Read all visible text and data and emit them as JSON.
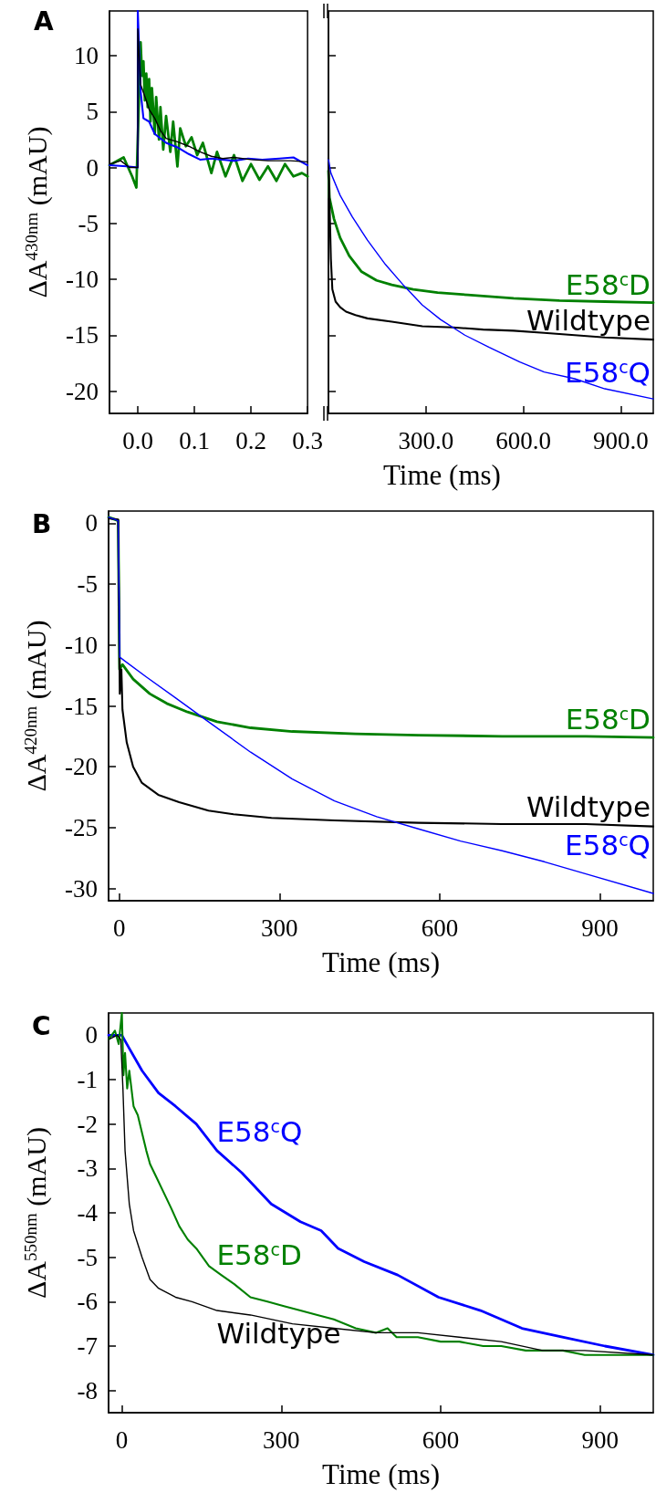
{
  "chart_data": [
    {
      "type": "line",
      "title": "A",
      "ylabel": "ΔA$^{430nm}$ (mAU)",
      "marker": "none",
      "xlim": [
        -0.05,
        0.3
      ],
      "ylim": [
        -22,
        14
      ],
      "xticks": [
        {
          "value": 0,
          "label": "0.0"
        },
        {
          "value": 0.1,
          "label": "0.1"
        },
        {
          "value": 0.2,
          "label": "0.2"
        },
        {
          "value": 0.3,
          "label": "0.3"
        }
      ],
      "yticks": [
        -20,
        -15,
        -10,
        -5,
        0,
        5,
        10
      ],
      "series": [
        {
          "color": "#008000",
          "x": [
            -0.05,
            -0.025,
            -0.01,
            -0.0025,
            0.005,
            0.0075,
            0.01,
            0.0125,
            0.015,
            0.0175,
            0.02,
            0.0225,
            0.025,
            0.03,
            0.0325,
            0.0375,
            0.04,
            0.045,
            0.05,
            0.0575,
            0.0625,
            0.07,
            0.075,
            0.085,
            0.095,
            0.105,
            0.115,
            0.13,
            0.14,
            0.155,
            0.17,
            0.185,
            0.2,
            0.215,
            0.23,
            0.245,
            0.26,
            0.275,
            0.29,
            0.3
          ],
          "values": [
            0.2,
            0.9,
            -0.8,
            -1.8,
            11.2,
            8.2,
            9.5,
            6.0,
            8.4,
            5.4,
            7.9,
            4.1,
            7.1,
            3.0,
            6.3,
            2.5,
            5.4,
            1.6,
            4.6,
            1.4,
            4.1,
            0.1,
            3.5,
            1.9,
            2.7,
            1.1,
            2.2,
            -0.5,
            1.4,
            -0.8,
            1.1,
            -1.2,
            0.3,
            -1.1,
            0.1,
            -1.2,
            0.3,
            -0.8,
            -0.5,
            -0.8
          ]
        },
        {
          "color": "#0000ff",
          "x": [
            -0.05,
            -0.02,
            0,
            0,
            0.005,
            0.01,
            0.02,
            0.03,
            0.05,
            0.07,
            0.09,
            0.11,
            0.13,
            0.17,
            0.195,
            0.22,
            0.25,
            0.275,
            0.3
          ],
          "values": [
            0.2,
            0.1,
            0,
            14,
            6.8,
            4.4,
            4.1,
            3.0,
            2.2,
            1.8,
            1.2,
            0.7,
            0.8,
            0.6,
            0.8,
            0.7,
            0.8,
            0.9,
            0.2
          ]
        },
        {
          "color": "#000000",
          "x": [
            -0.05,
            -0.03,
            -0.015,
            0,
            0,
            0.005,
            0.015,
            0.02,
            0.03,
            0.04,
            0.05,
            0.07,
            0.09,
            0.11,
            0.13,
            0.15,
            0.17,
            0.2,
            0.23,
            0.27,
            0.3
          ],
          "values": [
            0.3,
            0.6,
            0,
            0,
            12.4,
            7.4,
            6.0,
            5.2,
            4.4,
            3.3,
            2.6,
            2.3,
            1.9,
            1.4,
            1.0,
            0.8,
            0.9,
            0.7,
            0.6,
            0.6,
            0.5
          ]
        }
      ]
    },
    {
      "type": "line",
      "xlabel": "Time (ms)",
      "marker": "none",
      "tick_labels": "x",
      "xlim": [
        0,
        1000
      ],
      "ylim": [
        -22,
        14
      ],
      "xticks": [
        {
          "value": 300,
          "label": "300.0"
        },
        {
          "value": 600,
          "label": "600.0"
        },
        {
          "value": 900,
          "label": "900.0"
        }
      ],
      "yticks": [
        -20,
        -15,
        -10,
        -5,
        0,
        5,
        10
      ],
      "series": [
        {
          "name": "E58$^{c}$D",
          "color": "#008000",
          "x": [
            0,
            3,
            17,
            36,
            64,
            101,
            148,
            195,
            261,
            336,
            429,
            570,
            711,
            851,
            1000
          ],
          "values": [
            -0.3,
            -2.7,
            -4.6,
            -6.3,
            -7.9,
            -9.3,
            -10.1,
            -10.5,
            -10.9,
            -11.2,
            -11.4,
            -11.7,
            -11.9,
            -12.0,
            -12.1
          ]
        },
        {
          "name": "Wildtype",
          "color": "#000000",
          "x": [
            0,
            7.5,
            12,
            22,
            36,
            54,
            83,
            120,
            195,
            289,
            383,
            476,
            570,
            664,
            758,
            851,
            1000
          ],
          "values": [
            0.8,
            -8.2,
            -10.9,
            -12.0,
            -12.5,
            -12.9,
            -13.2,
            -13.5,
            -13.8,
            -14.2,
            -14.3,
            -14.5,
            -14.6,
            -14.8,
            -15.0,
            -15.2,
            -15.4
          ]
        },
        {
          "name": "E58$^{c}$Q",
          "color": "#0000ff",
          "x": [
            0,
            7.5,
            36,
            73,
            120,
            176,
            233,
            289,
            345,
            420,
            495,
            589,
            664,
            758,
            851,
            1000
          ],
          "values": [
            0.7,
            -0.5,
            -2.5,
            -4.4,
            -6.5,
            -8.7,
            -10.6,
            -12.3,
            -13.6,
            -15.0,
            -16.1,
            -17.4,
            -18.3,
            -18.9,
            -19.8,
            -20.7
          ]
        }
      ]
    },
    {
      "type": "line",
      "title": "B",
      "xlabel": "Time (ms)",
      "ylabel": "ΔA$^{420nm}$ (mAU)",
      "marker": "none",
      "xlim": [
        -20,
        1000
      ],
      "ylim": [
        -31,
        1
      ],
      "xticks": [
        0,
        300,
        600,
        900
      ],
      "yticks": [
        -30,
        -25,
        -20,
        -15,
        -10,
        -5,
        0
      ],
      "series": [
        {
          "name": "E58$^{c}$D",
          "color": "#008000",
          "x": [
            -20,
            -2,
            0.5,
            6,
            26,
            57,
            89,
            128,
            183,
            246,
            324,
            442,
            560,
            717,
            874,
            1000
          ],
          "values": [
            0.5,
            0.2,
            -12,
            -11.6,
            -12.8,
            -14.0,
            -14.8,
            -15.5,
            -16.3,
            -16.8,
            -17.1,
            -17.3,
            -17.4,
            -17.5,
            -17.5,
            -17.6
          ]
        },
        {
          "name": "Wildtype",
          "color": "#000000",
          "x": [
            -20,
            -2,
            1,
            4,
            6,
            14,
            26,
            42,
            73,
            112,
            167,
            214,
            285,
            403,
            560,
            717,
            874,
            1000
          ],
          "values": [
            0.4,
            0.3,
            -14,
            -12,
            -15.3,
            -18,
            -20,
            -21.3,
            -22.3,
            -22.9,
            -23.6,
            -23.9,
            -24.2,
            -24.4,
            -24.6,
            -24.7,
            -24.7,
            -24.9
          ]
        },
        {
          "name": "E58$^{c}$Q",
          "color": "#0000ff",
          "x": [
            -20,
            -2,
            1,
            10,
            50,
            104,
            167,
            246,
            324,
            403,
            482,
            560,
            639,
            717,
            796,
            874,
            1000
          ],
          "values": [
            0.5,
            0.2,
            -11,
            -11.3,
            -12.6,
            -14.3,
            -16.3,
            -18.8,
            -21.0,
            -22.8,
            -24.1,
            -25.1,
            -26.1,
            -26.9,
            -27.8,
            -28.8,
            -30.4
          ]
        }
      ]
    },
    {
      "type": "line",
      "title": "C",
      "xlabel": "Time (ms)",
      "ylabel": "ΔA$^{550nm}$ (mAU)",
      "marker": "none",
      "xlim": [
        -25,
        1000
      ],
      "ylim": [
        -8.5,
        0.5
      ],
      "xticks": [
        0,
        300,
        600,
        900
      ],
      "yticks": [
        -8,
        -7,
        -6,
        -5,
        -4,
        -3,
        -2,
        -1,
        0
      ],
      "series": [
        {
          "name": "E58$^{c}$Q",
          "color": "#0000ff",
          "x": [
            -25,
            0,
            14,
            38,
            69,
            101,
            140,
            179,
            226,
            281,
            336,
            375,
            407,
            456,
            519,
            596,
            675,
            753,
            831,
            909,
            1000
          ],
          "values": [
            0.0,
            0.0,
            -0.3,
            -0.8,
            -1.3,
            -1.6,
            -2.0,
            -2.6,
            -3.1,
            -3.8,
            -4.2,
            -4.4,
            -4.8,
            -5.1,
            -5.4,
            -5.9,
            -6.2,
            -6.6,
            -6.8,
            -7.0,
            -7.2
          ]
        },
        {
          "name": "E58$^{c}$D",
          "color": "#008000",
          "x": [
            -25,
            -13,
            -6,
            0,
            3,
            6,
            10,
            14,
            22,
            30,
            38,
            46,
            53,
            65,
            77,
            93,
            108,
            124,
            140,
            164,
            187,
            211,
            242,
            274,
            305,
            336,
            368,
            399,
            420,
            440,
            478,
            500,
            517,
            557,
            600,
            635,
            680,
            714,
            760,
            792,
            830,
            871,
            1000
          ],
          "values": [
            -0.1,
            0.1,
            -0.2,
            0.5,
            -0.9,
            -0.4,
            -1.2,
            -0.8,
            -1.6,
            -1.8,
            -2.2,
            -2.6,
            -2.9,
            -3.2,
            -3.5,
            -3.9,
            -4.3,
            -4.6,
            -4.8,
            -5.2,
            -5.4,
            -5.6,
            -5.9,
            -6.0,
            -6.1,
            -6.2,
            -6.3,
            -6.4,
            -6.5,
            -6.6,
            -6.7,
            -6.6,
            -6.8,
            -6.8,
            -6.9,
            -6.9,
            -7.0,
            -7.0,
            -7.1,
            -7.1,
            -7.1,
            -7.2,
            -7.2
          ]
        },
        {
          "name": "Wildtype",
          "color": "#000000",
          "x": [
            -25,
            -9,
            -2,
            2,
            6,
            14,
            22,
            38,
            53,
            69,
            101,
            132,
            179,
            242,
            321,
            399,
            478,
            557,
            635,
            714,
            792,
            871,
            1000
          ],
          "values": [
            -0.1,
            0.0,
            -0.1,
            -1.2,
            -2.6,
            -3.8,
            -4.4,
            -5.0,
            -5.5,
            -5.7,
            -5.9,
            -6.0,
            -6.2,
            -6.3,
            -6.5,
            -6.6,
            -6.7,
            -6.7,
            -6.8,
            -6.9,
            -7.1,
            -7.1,
            -7.2
          ]
        }
      ]
    }
  ]
}
